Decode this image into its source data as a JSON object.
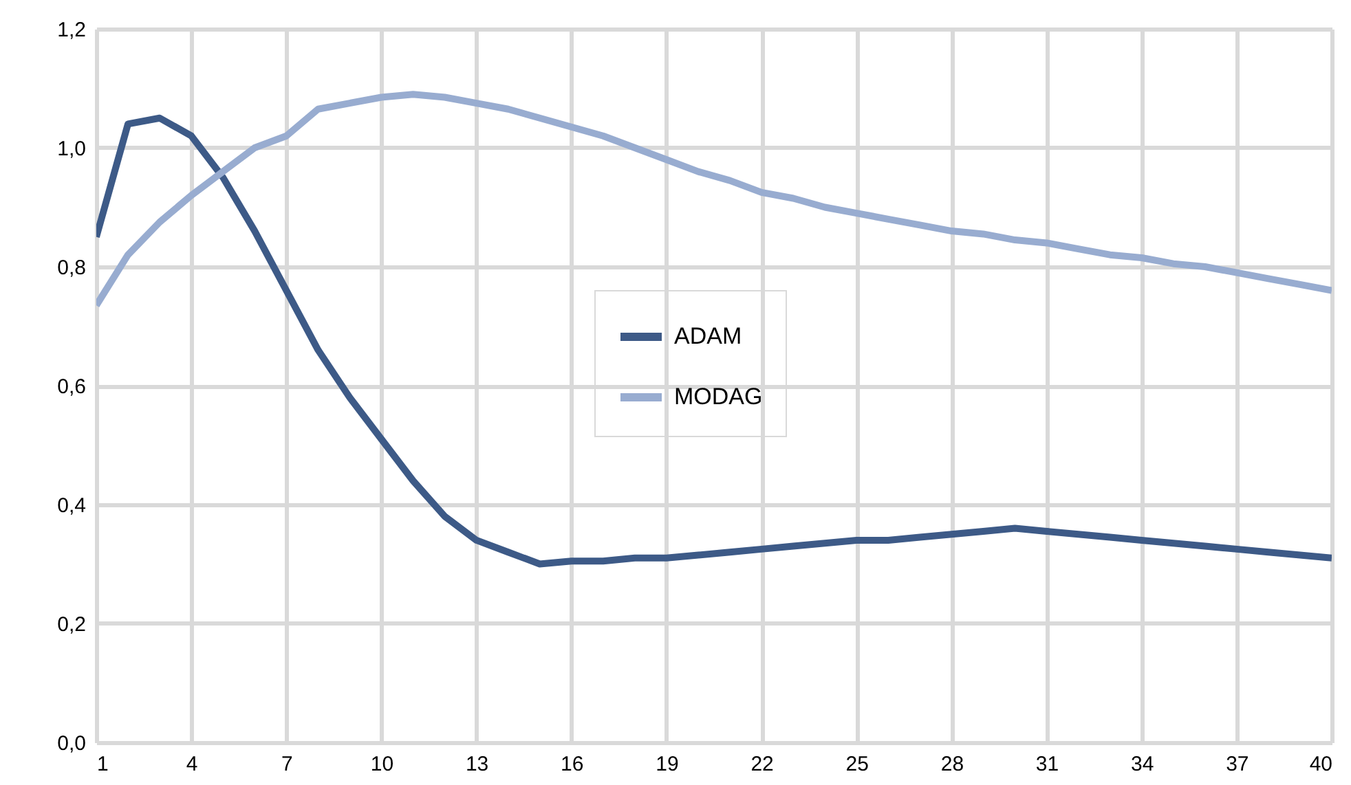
{
  "chart_data": {
    "type": "line",
    "x": [
      1,
      2,
      3,
      4,
      5,
      6,
      7,
      8,
      9,
      10,
      11,
      12,
      13,
      14,
      15,
      16,
      17,
      18,
      19,
      20,
      21,
      22,
      23,
      24,
      25,
      26,
      27,
      28,
      29,
      30,
      31,
      32,
      33,
      34,
      35,
      36,
      37,
      38,
      39,
      40
    ],
    "series": [
      {
        "name": "ADAM",
        "color": "#3d5a87",
        "values": [
          0.85,
          1.04,
          1.05,
          1.02,
          0.95,
          0.86,
          0.76,
          0.66,
          0.58,
          0.51,
          0.44,
          0.38,
          0.34,
          0.32,
          0.3,
          0.305,
          0.305,
          0.31,
          0.31,
          0.315,
          0.32,
          0.325,
          0.33,
          0.335,
          0.34,
          0.34,
          0.345,
          0.35,
          0.355,
          0.36,
          0.355,
          0.35,
          0.345,
          0.34,
          0.335,
          0.33,
          0.325,
          0.32,
          0.315,
          0.31
        ]
      },
      {
        "name": "MODAG",
        "color": "#98acd0",
        "values": [
          0.735,
          0.82,
          0.875,
          0.92,
          0.96,
          1.0,
          1.02,
          1.065,
          1.075,
          1.085,
          1.09,
          1.085,
          1.075,
          1.065,
          1.05,
          1.035,
          1.02,
          1.0,
          0.98,
          0.96,
          0.945,
          0.925,
          0.915,
          0.9,
          0.89,
          0.88,
          0.87,
          0.86,
          0.855,
          0.845,
          0.84,
          0.83,
          0.82,
          0.815,
          0.805,
          0.8,
          0.79,
          0.78,
          0.77,
          0.76
        ]
      }
    ],
    "xlim": [
      1,
      40
    ],
    "xticks": [
      1,
      4,
      7,
      10,
      13,
      16,
      19,
      22,
      25,
      28,
      31,
      34,
      37,
      40
    ],
    "ylim": [
      0,
      1.2
    ],
    "yticks": [
      {
        "value": 0,
        "label": "0,0"
      },
      {
        "value": 0.2,
        "label": "0,2"
      },
      {
        "value": 0.4,
        "label": "0,4"
      },
      {
        "value": 0.6,
        "label": "0,6"
      },
      {
        "value": 0.8,
        "label": "0,8"
      },
      {
        "value": 1.0,
        "label": "1,0"
      },
      {
        "value": 1.2,
        "label": "1,2"
      }
    ],
    "grid": true,
    "legend": "center",
    "marker": "none",
    "line_style": "solid"
  }
}
